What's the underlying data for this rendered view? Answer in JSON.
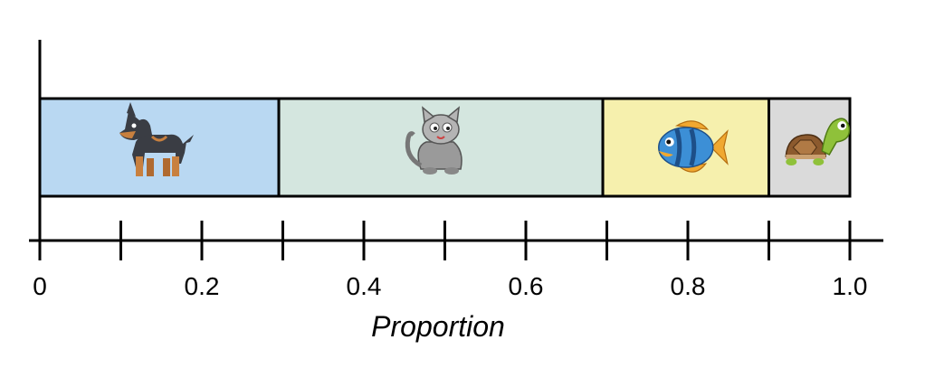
{
  "chart_data": {
    "type": "bar",
    "orientation": "horizontal-stacked",
    "xlabel": "Proportion",
    "xlim": [
      0,
      1.0
    ],
    "major_ticks": [
      0,
      0.2,
      0.4,
      0.6,
      0.8,
      1.0
    ],
    "tick_labels": [
      "0",
      "0.2",
      "0.4",
      "0.6",
      "0.8",
      "1.0"
    ],
    "minor_ticks": [
      0.1,
      0.3,
      0.5,
      0.7,
      0.9
    ],
    "segments": [
      {
        "icon": "dog-icon",
        "value": 0.295,
        "color": "#b9d8f2"
      },
      {
        "icon": "cat-icon",
        "value": 0.4,
        "color": "#d4e6df"
      },
      {
        "icon": "fish-icon",
        "value": 0.205,
        "color": "#f6f0ad"
      },
      {
        "icon": "turtle-icon",
        "value": 0.1,
        "color": "#dadada"
      }
    ]
  }
}
